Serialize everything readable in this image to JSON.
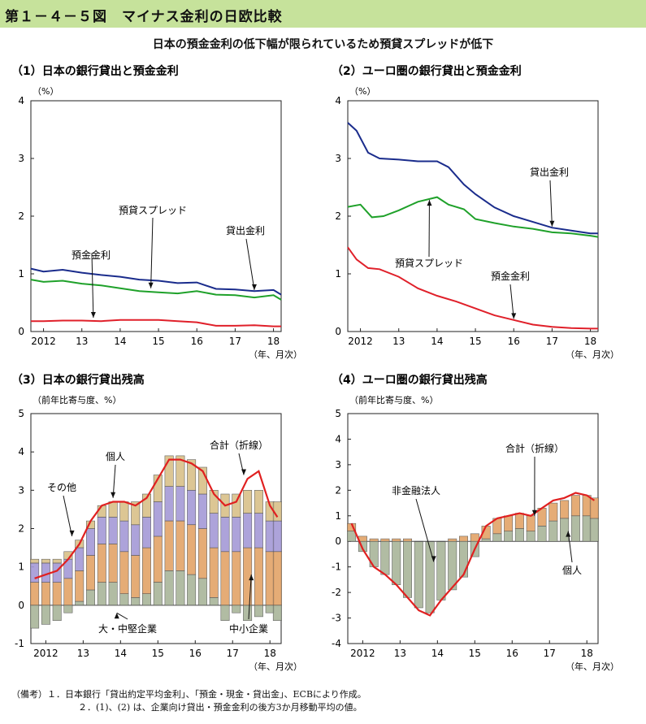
{
  "header": {
    "figure_title": "第１－４－５図　マイナス金利の日欧比較"
  },
  "subtitle": "日本の預金金利の低下幅が限られているため預貸スプレッドが低下",
  "notes": [
    "（備考）１．日本銀行「貸出約定平均金利」、「預金・現金・貸出金」、ECBにより作成。",
    "２．(1)、(2) は、企業向け貸出・預金金利の後方3か月移動平均の値。"
  ],
  "colors": {
    "lending": "#1a2c8c",
    "spread": "#1fa12a",
    "deposit": "#e0202a",
    "header_bg": "#c6e29b",
    "total": "#e02020"
  },
  "chart_data": [
    {
      "type": "line",
      "panel_title": "（1）日本の銀行貸出と預金金利",
      "unit": "（%）",
      "xlabel": "（年、月次）",
      "x_ticks": [
        "2012",
        "13",
        "14",
        "15",
        "16",
        "17",
        "18"
      ],
      "y_ticks": [
        "0",
        "1",
        "2",
        "3",
        "4"
      ],
      "ylim": [
        0,
        4
      ],
      "series": [
        {
          "name": "貸出金利",
          "color": "#1a2c8c",
          "x": [
            2011.67,
            2012.0,
            2012.5,
            2013.0,
            2013.5,
            2014.0,
            2014.5,
            2015.0,
            2015.5,
            2016.0,
            2016.5,
            2017.0,
            2017.5,
            2018.0,
            2018.2
          ],
          "values": [
            1.09,
            1.04,
            1.07,
            1.02,
            0.98,
            0.95,
            0.9,
            0.88,
            0.84,
            0.85,
            0.74,
            0.73,
            0.7,
            0.72,
            0.64
          ]
        },
        {
          "name": "預貸スプレッド",
          "color": "#1fa12a",
          "x": [
            2011.67,
            2012.0,
            2012.5,
            2013.0,
            2013.5,
            2014.0,
            2014.5,
            2015.0,
            2015.5,
            2016.0,
            2016.5,
            2017.0,
            2017.5,
            2018.0,
            2018.2
          ],
          "values": [
            0.9,
            0.86,
            0.88,
            0.83,
            0.8,
            0.75,
            0.7,
            0.68,
            0.66,
            0.7,
            0.64,
            0.63,
            0.59,
            0.63,
            0.55
          ]
        },
        {
          "name": "預金金利",
          "color": "#e0202a",
          "x": [
            2011.67,
            2012.0,
            2012.5,
            2013.0,
            2013.5,
            2014.0,
            2014.5,
            2015.0,
            2015.5,
            2016.0,
            2016.5,
            2017.0,
            2017.5,
            2018.0,
            2018.2
          ],
          "values": [
            0.18,
            0.18,
            0.19,
            0.19,
            0.18,
            0.2,
            0.2,
            0.2,
            0.18,
            0.16,
            0.1,
            0.1,
            0.11,
            0.09,
            0.09
          ]
        }
      ],
      "annotations": [
        {
          "text": "預金金利",
          "series": "預金金利"
        },
        {
          "text": "預貸スプレッド",
          "series": "預貸スプレッド"
        },
        {
          "text": "貸出金利",
          "series": "貸出金利"
        }
      ]
    },
    {
      "type": "line",
      "panel_title": "（2）ユーロ圏の銀行貸出と預金金利",
      "unit": "（%）",
      "xlabel": "（年、月次）",
      "x_ticks": [
        "2012",
        "13",
        "14",
        "15",
        "16",
        "17",
        "18"
      ],
      "y_ticks": [
        "0",
        "1",
        "2",
        "3",
        "4"
      ],
      "ylim": [
        0,
        4
      ],
      "series": [
        {
          "name": "貸出金利",
          "color": "#1a2c8c",
          "x": [
            2011.67,
            2011.9,
            2012.2,
            2012.5,
            2013.0,
            2013.5,
            2014.0,
            2014.3,
            2014.7,
            2015.0,
            2015.5,
            2016.0,
            2016.5,
            2017.0,
            2017.5,
            2018.0,
            2018.2
          ],
          "values": [
            3.62,
            3.48,
            3.1,
            3.0,
            2.98,
            2.95,
            2.95,
            2.85,
            2.55,
            2.38,
            2.15,
            2.0,
            1.9,
            1.8,
            1.75,
            1.7,
            1.7
          ]
        },
        {
          "name": "預貸スプレッド",
          "color": "#1fa12a",
          "x": [
            2011.67,
            2012.0,
            2012.3,
            2012.6,
            2013.0,
            2013.5,
            2014.0,
            2014.3,
            2014.7,
            2015.0,
            2015.5,
            2016.0,
            2016.5,
            2017.0,
            2017.5,
            2018.0,
            2018.2
          ],
          "values": [
            2.16,
            2.2,
            1.98,
            2.0,
            2.1,
            2.25,
            2.33,
            2.2,
            2.12,
            1.95,
            1.88,
            1.82,
            1.78,
            1.72,
            1.7,
            1.66,
            1.64
          ]
        },
        {
          "name": "預金金利",
          "color": "#e0202a",
          "x": [
            2011.67,
            2011.9,
            2012.2,
            2012.5,
            2013.0,
            2013.5,
            2014.0,
            2014.5,
            2015.0,
            2015.5,
            2016.0,
            2016.5,
            2017.0,
            2017.5,
            2018.0,
            2018.2
          ],
          "values": [
            1.46,
            1.25,
            1.1,
            1.08,
            0.95,
            0.75,
            0.62,
            0.52,
            0.4,
            0.28,
            0.2,
            0.12,
            0.08,
            0.06,
            0.05,
            0.05
          ]
        }
      ],
      "annotations": [
        {
          "text": "貸出金利",
          "series": "貸出金利"
        },
        {
          "text": "預貸スプレッド",
          "series": "預貸スプレッド"
        },
        {
          "text": "預金金利",
          "series": "預金金利"
        }
      ]
    },
    {
      "type": "bar",
      "panel_title": "（3）日本の銀行貸出残高",
      "unit": "（前年比寄与度、%）",
      "xlabel": "（年、月次）",
      "x_ticks": [
        "2012",
        "13",
        "14",
        "15",
        "16",
        "17",
        "18"
      ],
      "y_ticks": [
        "-1",
        "0",
        "1",
        "2",
        "3",
        "4",
        "5"
      ],
      "ylim": [
        -1,
        5
      ],
      "categories": [
        "2011.7",
        "2012.0",
        "2012.3",
        "2012.6",
        "2012.9",
        "2013.2",
        "2013.5",
        "2013.8",
        "2014.1",
        "2014.4",
        "2014.7",
        "2015.0",
        "2015.3",
        "2015.6",
        "2015.9",
        "2016.2",
        "2016.5",
        "2016.8",
        "2017.1",
        "2017.4",
        "2017.7",
        "2018.0",
        "2018.2"
      ],
      "series": [
        {
          "name": "大・中堅企業",
          "color": "#a9b59a",
          "values": [
            -0.6,
            -0.5,
            -0.4,
            -0.2,
            0.1,
            0.4,
            0.6,
            0.6,
            0.3,
            0.2,
            0.3,
            0.6,
            0.9,
            0.9,
            0.8,
            0.7,
            0.2,
            -0.4,
            -0.2,
            -0.4,
            -0.3,
            -0.2,
            -0.4
          ]
        },
        {
          "name": "中小企業",
          "color": "#e3a468",
          "values": [
            0.6,
            0.6,
            0.6,
            0.7,
            0.8,
            0.9,
            1.0,
            1.0,
            1.1,
            1.1,
            1.2,
            1.2,
            1.3,
            1.3,
            1.3,
            1.3,
            1.3,
            1.4,
            1.4,
            1.5,
            1.5,
            1.4,
            1.4
          ]
        },
        {
          "name": "個人",
          "color": "#a59ad6",
          "values": [
            0.5,
            0.5,
            0.5,
            0.5,
            0.6,
            0.7,
            0.7,
            0.7,
            0.8,
            0.8,
            0.8,
            0.9,
            0.9,
            0.9,
            0.9,
            0.9,
            0.9,
            0.9,
            0.9,
            0.9,
            0.9,
            0.8,
            0.8
          ]
        },
        {
          "name": "その他",
          "color": "#d9c089",
          "values": [
            0.1,
            0.1,
            0.1,
            0.2,
            0.2,
            0.2,
            0.3,
            0.4,
            0.5,
            0.6,
            0.6,
            0.7,
            0.8,
            0.8,
            0.8,
            0.7,
            0.6,
            0.6,
            0.6,
            0.6,
            0.6,
            0.5,
            0.5
          ]
        }
      ],
      "total": {
        "name": "合計（折線）",
        "color": "#e02020",
        "values": [
          0.7,
          0.8,
          0.9,
          1.2,
          1.6,
          2.2,
          2.6,
          2.7,
          2.7,
          2.6,
          2.8,
          3.3,
          3.8,
          3.8,
          3.7,
          3.5,
          2.9,
          2.6,
          2.7,
          3.3,
          3.5,
          2.6,
          2.3
        ]
      },
      "annotations": [
        {
          "text": "その他"
        },
        {
          "text": "個人"
        },
        {
          "text": "合計（折線）"
        },
        {
          "text": "大・中堅企業"
        },
        {
          "text": "中小企業"
        }
      ]
    },
    {
      "type": "bar",
      "panel_title": "（4）ユーロ圏の銀行貸出残高",
      "unit": "（前年比寄与度、%）",
      "xlabel": "（年、月次）",
      "x_ticks": [
        "2012",
        "13",
        "14",
        "15",
        "16",
        "17",
        "18"
      ],
      "y_ticks": [
        "-4",
        "-3",
        "-2",
        "-1",
        "0",
        "1",
        "2",
        "3",
        "4",
        "5"
      ],
      "ylim": [
        -4,
        5
      ],
      "categories": [
        "2011.7",
        "2012.0",
        "2012.3",
        "2012.6",
        "2012.9",
        "2013.2",
        "2013.5",
        "2013.8",
        "2014.1",
        "2014.4",
        "2014.7",
        "2015.0",
        "2015.3",
        "2015.6",
        "2015.9",
        "2016.2",
        "2016.5",
        "2016.8",
        "2017.1",
        "2017.4",
        "2017.7",
        "2018.0",
        "2018.2"
      ],
      "series": [
        {
          "name": "非金融法人",
          "color": "#a9b59a",
          "values": [
            0.4,
            -0.4,
            -1.0,
            -1.3,
            -1.7,
            -2.2,
            -2.6,
            -2.8,
            -2.3,
            -1.9,
            -1.4,
            -0.6,
            0.1,
            0.3,
            0.4,
            0.5,
            0.4,
            0.6,
            0.8,
            0.9,
            1.0,
            1.0,
            0.9
          ]
        },
        {
          "name": "個人",
          "color": "#e3a468",
          "values": [
            0.3,
            0.2,
            0.1,
            0.1,
            0.1,
            0.1,
            0.0,
            0.0,
            0.0,
            0.1,
            0.2,
            0.3,
            0.5,
            0.6,
            0.6,
            0.6,
            0.6,
            0.7,
            0.7,
            0.7,
            0.8,
            0.8,
            0.8
          ]
        }
      ],
      "total": {
        "name": "合計（折線）",
        "color": "#e02020",
        "values": [
          0.7,
          -0.3,
          -1.0,
          -1.3,
          -1.7,
          -2.2,
          -2.7,
          -2.9,
          -2.3,
          -1.8,
          -1.3,
          -0.3,
          0.6,
          0.9,
          1.0,
          1.1,
          1.0,
          1.3,
          1.6,
          1.7,
          1.9,
          1.8,
          1.6
        ]
      },
      "annotations": [
        {
          "text": "非金融法人"
        },
        {
          "text": "合計（折線）"
        },
        {
          "text": "個人"
        }
      ]
    }
  ]
}
